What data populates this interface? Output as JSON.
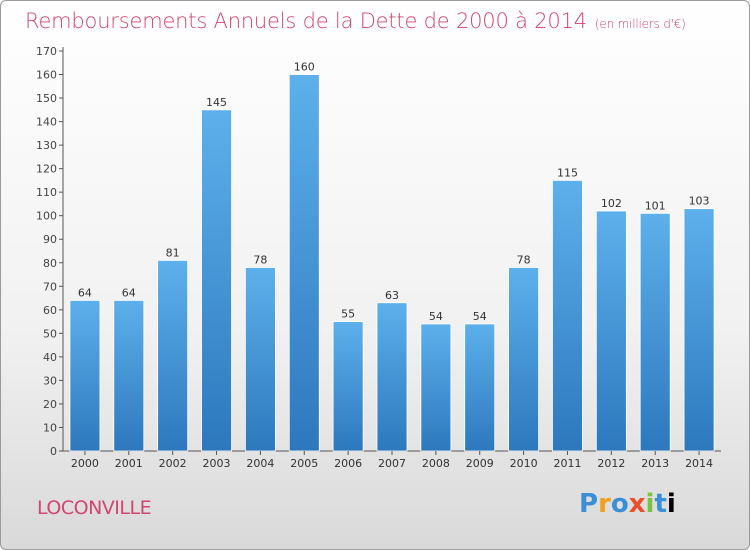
{
  "title": "Remboursements Annuels de la Dette de 2000 à 2014",
  "unit_note": "(en milliers d'€)",
  "location": "LOCONVILLE",
  "logo_text": "Proxiti",
  "colors": {
    "title": "#d1456f",
    "bar_light": "#5db0ec",
    "bar_dark": "#2d78bd"
  },
  "chart_data": {
    "type": "bar",
    "title": "Remboursements Annuels de la Dette de 2000 à 2014",
    "subtitle": "(en milliers d'€)",
    "categories": [
      "2000",
      "2001",
      "2002",
      "2003",
      "2004",
      "2005",
      "2006",
      "2007",
      "2008",
      "2009",
      "2010",
      "2011",
      "2012",
      "2013",
      "2014"
    ],
    "values": [
      64,
      64,
      81,
      145,
      78,
      160,
      55,
      63,
      54,
      54,
      78,
      115,
      102,
      101,
      103
    ],
    "ylim": [
      0,
      170
    ],
    "yticks": [
      0,
      10,
      20,
      30,
      40,
      50,
      60,
      70,
      80,
      90,
      100,
      110,
      120,
      130,
      140,
      150,
      160,
      170
    ],
    "grid": false,
    "legend": "none"
  }
}
